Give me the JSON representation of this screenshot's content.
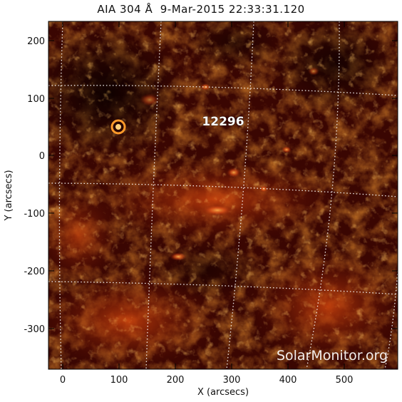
{
  "title": "AIA 304 Å  9-Mar-2015 22:33:31.120",
  "axes": {
    "xlabel": "X (arcsecs)",
    "ylabel": "Y (arcsecs)",
    "xlim": [
      -20,
      570
    ],
    "ylim": [
      -370,
      230
    ],
    "x_ticks": [
      "0",
      "100",
      "200",
      "300",
      "400",
      "500"
    ],
    "y_ticks": [
      "200",
      "100",
      "0",
      "-100",
      "-200",
      "-300"
    ]
  },
  "active_region": {
    "label": "12296"
  },
  "watermark": "SolarMonitor.org",
  "colors": {
    "dark": "#0f0000",
    "mid": "#6a0d02",
    "hot": "#c23a05",
    "bright": "#ff8a1a",
    "grid": "#ffffff"
  }
}
